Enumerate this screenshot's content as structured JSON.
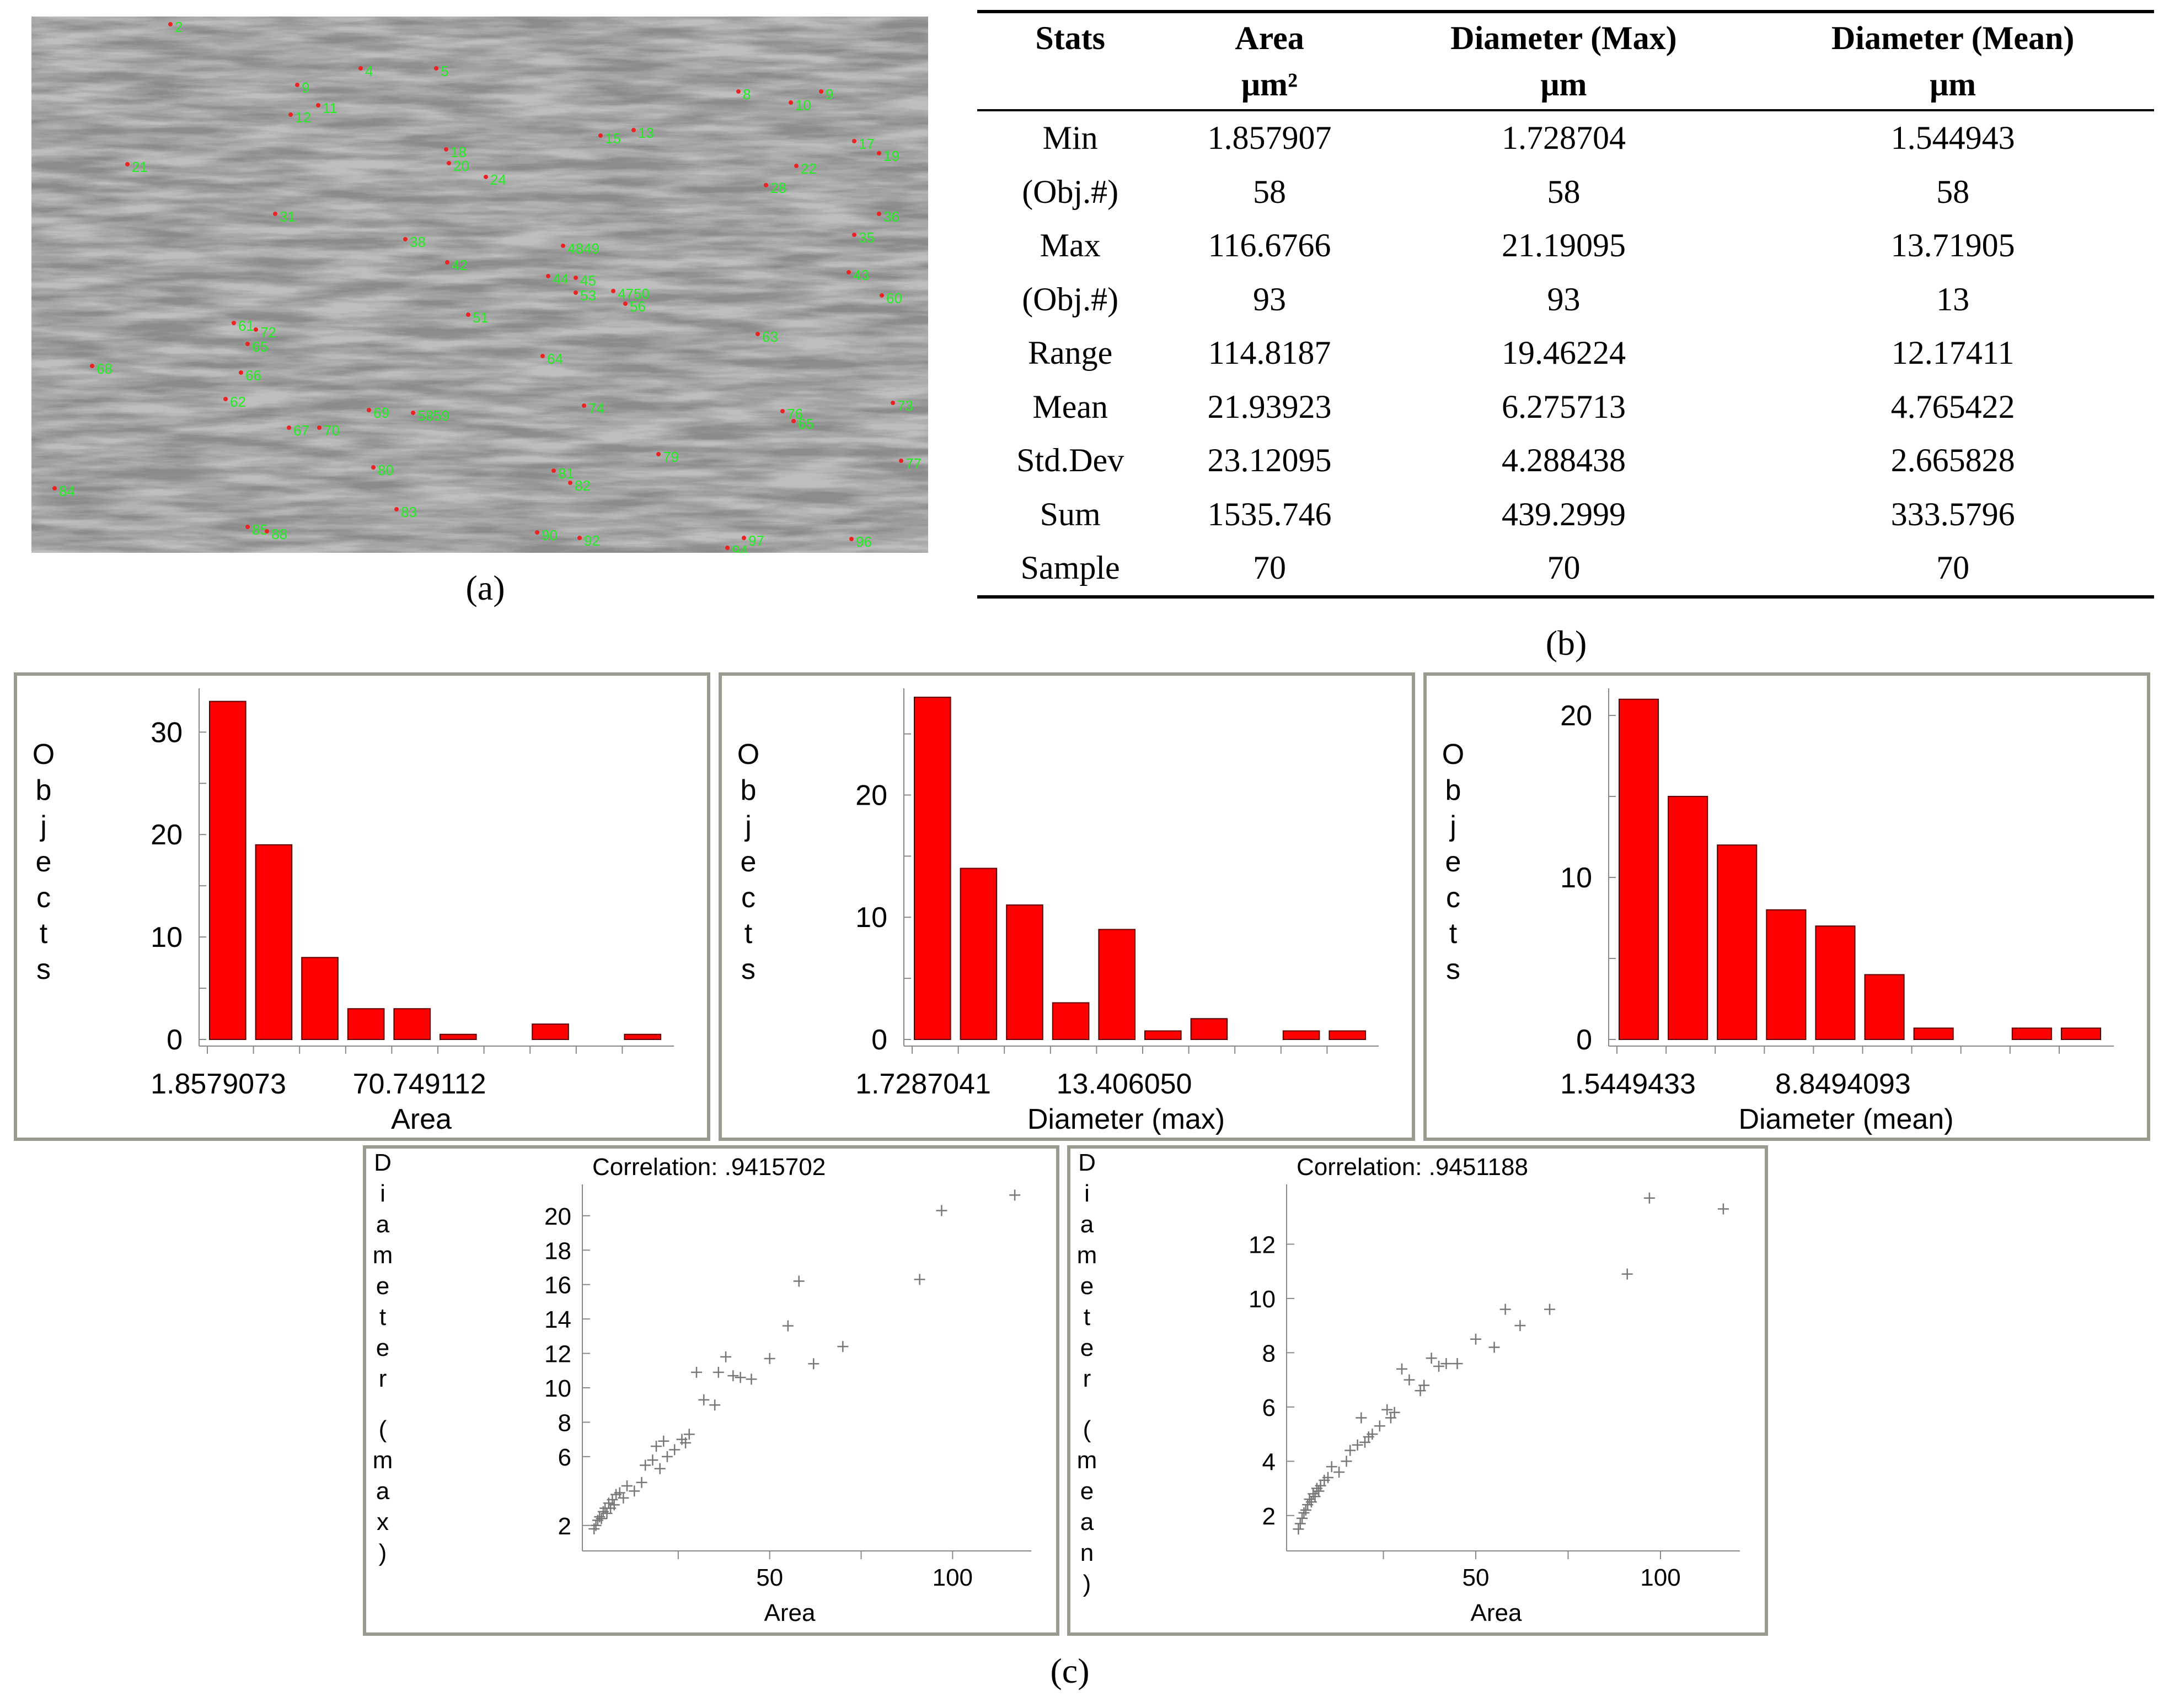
{
  "captions": {
    "a": "(a)",
    "b": "(b)",
    "c": "(c)"
  },
  "micrograph": {
    "labels": [
      "2",
      "4",
      "5",
      "9",
      "11",
      "12",
      "15",
      "13",
      "8",
      "10",
      "9",
      "17",
      "19",
      "21",
      "18",
      "20",
      "24",
      "22",
      "28",
      "31",
      "36",
      "35",
      "38",
      "42",
      "4849",
      "44",
      "45",
      "53",
      "4750",
      "56",
      "43",
      "60",
      "51",
      "63",
      "61",
      "72",
      "65",
      "66",
      "68",
      "62",
      "69",
      "5859",
      "67",
      "70",
      "76",
      "65",
      "64",
      "74",
      "73",
      "77",
      "79",
      "80",
      "81",
      "82",
      "83",
      "84",
      "85",
      "88",
      "90",
      "92",
      "94",
      "96",
      "97"
    ]
  },
  "table": {
    "headers": [
      {
        "line1": "Stats",
        "line2": ""
      },
      {
        "line1": "Area",
        "line2": "μm²"
      },
      {
        "line1": "Diameter (Max)",
        "line2": "μm"
      },
      {
        "line1": "Diameter (Mean)",
        "line2": "μm"
      }
    ],
    "rows": [
      [
        "Min",
        "1.857907",
        "1.728704",
        "1.544943"
      ],
      [
        "(Obj.#)",
        "58",
        "58",
        "58"
      ],
      [
        "Max",
        "116.6766",
        "21.19095",
        "13.71905"
      ],
      [
        "(Obj.#)",
        "93",
        "93",
        "13"
      ],
      [
        "Range",
        "114.8187",
        "19.46224",
        "12.17411"
      ],
      [
        "Mean",
        "21.93923",
        "6.275713",
        "4.765422"
      ],
      [
        "Std.Dev",
        "23.12095",
        "4.288438",
        "2.665828"
      ],
      [
        "Sum",
        "1535.746",
        "439.2999",
        "333.5796"
      ],
      [
        "Sample",
        "70",
        "70",
        "70"
      ]
    ]
  },
  "colors": {
    "bar": "#ff0000",
    "bar_stroke": "#5a0000",
    "panel_border": "#9a9a8e",
    "marker": "#777777",
    "label_green": "#22ee22"
  },
  "chart_data": [
    {
      "type": "bar",
      "title": "",
      "xlabel": "Area",
      "ylabel": "Objects",
      "values": [
        33,
        19,
        8,
        3,
        3,
        0.5,
        0,
        1.5,
        0,
        0.5
      ],
      "xticks": [
        "1.8579073",
        "70.749112"
      ],
      "yticks": [
        0,
        10,
        20,
        30
      ],
      "ylim": [
        0,
        34
      ]
    },
    {
      "type": "bar",
      "title": "",
      "xlabel": "Diameter (max)",
      "ylabel": "Objects",
      "values": [
        28,
        14,
        11,
        3,
        9,
        0.7,
        1.7,
        0,
        0.7,
        0.7
      ],
      "xticks": [
        "1.7287041",
        "13.406050"
      ],
      "yticks": [
        0,
        10,
        20
      ],
      "ylim": [
        0,
        28.5
      ]
    },
    {
      "type": "bar",
      "title": "",
      "xlabel": "Diameter (mean)",
      "ylabel": "Objects",
      "values": [
        21,
        15,
        12,
        8,
        7,
        4,
        0.7,
        0,
        0.7,
        0.7
      ],
      "xticks": [
        "1.5449433",
        "8.8494093"
      ],
      "yticks": [
        0,
        10,
        20
      ],
      "ylim": [
        0,
        21.5
      ]
    },
    {
      "type": "scatter",
      "title": "Correlation: .9415702",
      "xlabel": "Area",
      "ylabel": "Diameter (max)",
      "xlim": [
        0,
        120
      ],
      "ylim": [
        1,
        21.5
      ],
      "xticks": [
        50,
        100
      ],
      "yticks": [
        2,
        6,
        8,
        10,
        12,
        14,
        16,
        18,
        20
      ],
      "x": [
        2,
        2.5,
        3,
        3.5,
        4,
        4.5,
        5,
        5.5,
        6,
        6.5,
        7,
        7.5,
        8,
        9,
        10,
        11,
        13,
        15,
        16,
        18,
        19,
        20,
        21,
        22,
        24,
        26,
        27,
        28,
        30,
        32,
        35,
        36,
        38,
        40,
        42,
        45,
        50,
        55,
        58,
        62,
        70,
        91,
        97,
        117
      ],
      "y": [
        1.8,
        2.0,
        2.3,
        2.5,
        2.4,
        2.8,
        3.0,
        2.7,
        3.3,
        3.0,
        3.5,
        3.2,
        3.8,
        3.9,
        3.6,
        4.3,
        4.0,
        4.5,
        5.5,
        5.8,
        6.6,
        5.3,
        6.9,
        6.0,
        6.4,
        7.0,
        6.8,
        7.3,
        10.9,
        9.3,
        9.0,
        10.9,
        11.8,
        10.7,
        10.6,
        10.5,
        11.7,
        13.6,
        16.2,
        11.4,
        12.4,
        16.3,
        20.3,
        21.2
      ]
    },
    {
      "type": "scatter",
      "title": "Correlation: .9451188",
      "xlabel": "Area",
      "ylabel": "Diameter (mean)",
      "xlim": [
        0,
        120
      ],
      "ylim": [
        1,
        14
      ],
      "xticks": [
        50,
        100
      ],
      "yticks": [
        2,
        4,
        6,
        8,
        10,
        12
      ],
      "x": [
        2,
        2.5,
        3,
        3.5,
        4,
        4.5,
        5,
        5.5,
        6,
        6.5,
        7,
        7.5,
        8,
        9,
        10,
        11,
        13,
        15,
        16,
        18,
        19,
        20,
        21,
        22,
        24,
        26,
        27,
        28,
        30,
        32,
        35,
        36,
        38,
        40,
        42,
        45,
        50,
        55,
        58,
        62,
        70,
        91,
        97,
        117
      ],
      "y": [
        1.5,
        1.7,
        1.9,
        2.1,
        2.2,
        2.4,
        2.6,
        2.5,
        2.8,
        2.7,
        3.0,
        2.9,
        3.1,
        3.3,
        3.4,
        3.8,
        3.6,
        4.0,
        4.4,
        4.6,
        5.6,
        4.7,
        4.9,
        5.0,
        5.3,
        5.9,
        5.6,
        5.8,
        7.4,
        7.0,
        6.6,
        6.8,
        7.8,
        7.5,
        7.6,
        7.6,
        8.5,
        8.2,
        9.6,
        9.0,
        9.6,
        10.9,
        13.7,
        13.3
      ]
    }
  ]
}
